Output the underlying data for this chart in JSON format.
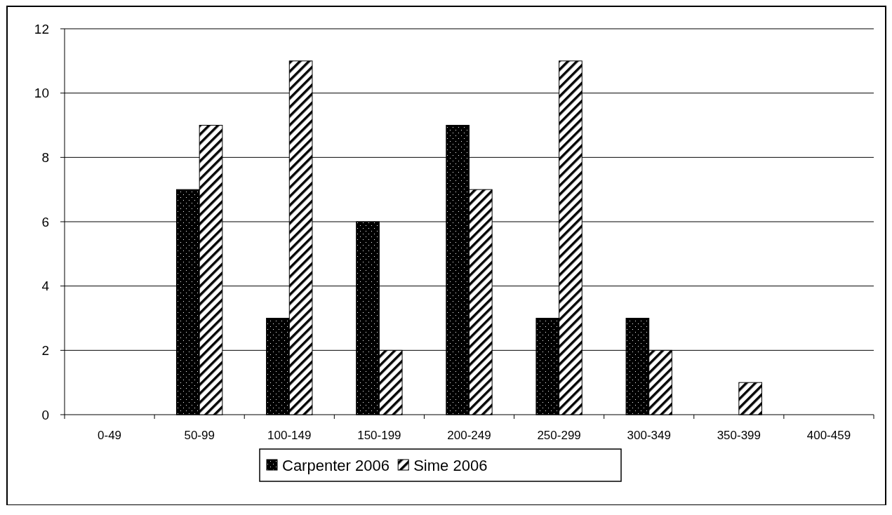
{
  "chart_data": {
    "type": "bar",
    "categories": [
      "0-49",
      "50-99",
      "100-149",
      "150-199",
      "200-249",
      "250-299",
      "300-349",
      "350-399",
      "400-459"
    ],
    "series": [
      {
        "name": "Carpenter 2006",
        "color": "#000000",
        "values": [
          0,
          7,
          3,
          6,
          9,
          3,
          3,
          0,
          0
        ]
      },
      {
        "name": "Sime 2006",
        "color": "#000000",
        "values": [
          0,
          9,
          11,
          2,
          7,
          11,
          2,
          1,
          0
        ]
      }
    ],
    "ylim": [
      0,
      12
    ],
    "yticks": [
      0,
      2,
      4,
      6,
      8,
      10,
      12
    ],
    "grid": "y",
    "legend": "bottom"
  }
}
